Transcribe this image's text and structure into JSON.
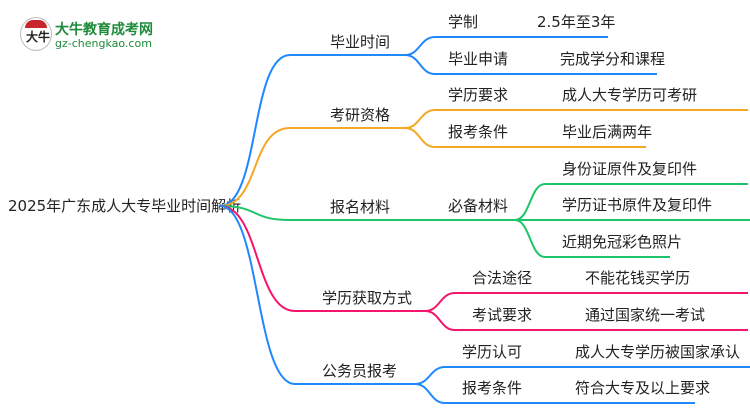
{
  "logo": {
    "name": "大牛教育成考网",
    "url": "gz-chengkao.com",
    "mark": "大牛"
  },
  "root": "2025年广东成人大专毕业时间解析",
  "branches": [
    {
      "label": "毕业时间",
      "color": "#1e88ff",
      "children": [
        {
          "label": "学制",
          "value": "2.5年至3年"
        },
        {
          "label": "毕业申请",
          "value": "完成学分和课程"
        }
      ]
    },
    {
      "label": "考研资格",
      "color": "#f5a623",
      "children": [
        {
          "label": "学历要求",
          "value": "成人大专学历可考研"
        },
        {
          "label": "报考条件",
          "value": "毕业后满两年"
        }
      ]
    },
    {
      "label": "报名材料",
      "color": "#1dc46a",
      "children": [
        {
          "label": "必备材料",
          "values": [
            "身份证原件及复印件",
            "学历证书原件及复印件",
            "近期免冠彩色照片"
          ]
        }
      ]
    },
    {
      "label": "学历获取方式",
      "color": "#f5156b",
      "children": [
        {
          "label": "合法途径",
          "value": "不能花钱买学历"
        },
        {
          "label": "考试要求",
          "value": "通过国家统一考试"
        }
      ]
    },
    {
      "label": "公务员报考",
      "color": "#1e88ff",
      "children": [
        {
          "label": "学历认可",
          "value": "成人大专学历被国家承认"
        },
        {
          "label": "报考条件",
          "value": "符合大专及以上要求"
        }
      ]
    }
  ]
}
